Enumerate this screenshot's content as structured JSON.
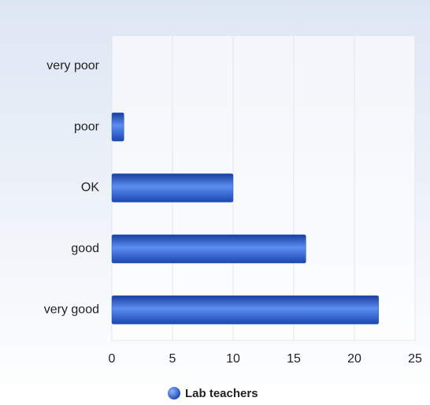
{
  "chart_data": {
    "type": "barh",
    "categories": [
      "very poor",
      "poor",
      "OK",
      "good",
      "very good"
    ],
    "series": [
      {
        "name": "Lab teachers",
        "color": "#2a5fc9",
        "values": [
          0,
          1,
          10,
          16,
          22
        ]
      }
    ],
    "xlim": [
      0,
      25
    ],
    "xticks": [
      0,
      5,
      10,
      15,
      20,
      25
    ],
    "grid": true,
    "legend": "bottom"
  }
}
